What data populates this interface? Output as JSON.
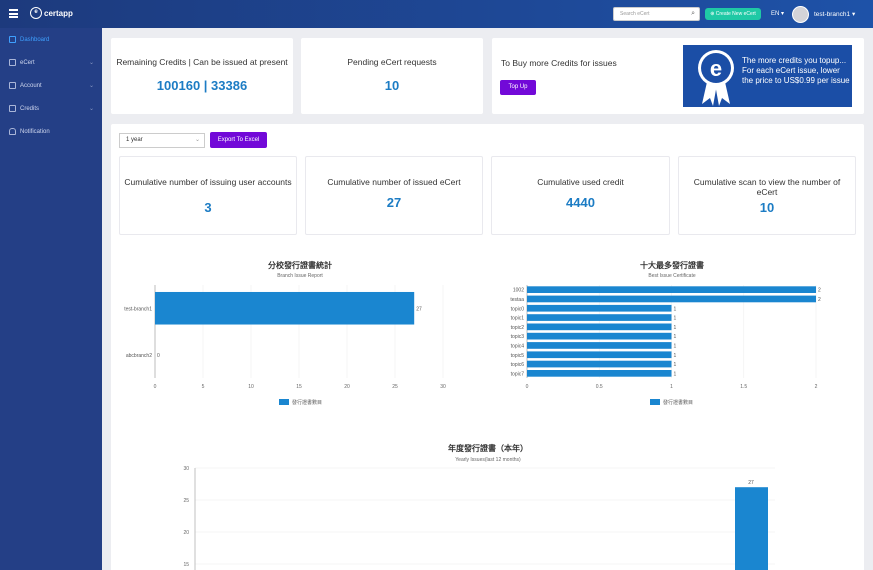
{
  "app": {
    "logo_text": "certapp",
    "search_placeholder": "Search eCert",
    "create_label": "Create New eCert",
    "lang": "EN",
    "user": "test-branch1"
  },
  "sidebar": {
    "items": [
      {
        "label": "Dashboard",
        "active": true
      },
      {
        "label": "eCert",
        "chev": true
      },
      {
        "label": "Account",
        "chev": true
      },
      {
        "label": "Credits",
        "chev": true
      },
      {
        "label": "Notification"
      }
    ]
  },
  "summary": {
    "remaining_title": "Remaining Credits | Can be issued at present",
    "remaining_value": "100160 | 33386",
    "pending_title": "Pending eCert requests",
    "pending_value": "10",
    "buy_title": "To Buy more Credits for issues",
    "topup_label": "Top Up",
    "banner_text": "The more credits you topup... For each eCert issue, lower the price to US$0.99 per issue"
  },
  "filter": {
    "period": "1 year",
    "export_label": "Export To Excel"
  },
  "stats": [
    {
      "title": "Cumulative number of issuing user accounts",
      "value": "3"
    },
    {
      "title": "Cumulative number of issued eCert",
      "value": "27"
    },
    {
      "title": "Cumulative used credit",
      "value": "4440"
    },
    {
      "title": "Cumulative scan to view the number of eCert",
      "value": "10"
    }
  ],
  "chart_data": [
    {
      "type": "bar",
      "orientation": "horizontal",
      "title": "分校發行證書統計",
      "subtitle": "Branch Issue Report",
      "categories": [
        "test-branch1",
        "abcbranch2"
      ],
      "series": [
        {
          "name": "發行證書數目",
          "values": [
            27,
            0
          ]
        }
      ],
      "xlim": [
        0,
        30
      ],
      "xticks": [
        "0",
        "5",
        "10",
        "15",
        "20",
        "25",
        "30"
      ],
      "color": "#1a86d0"
    },
    {
      "type": "bar",
      "orientation": "horizontal",
      "title": "十大最多發行證書",
      "subtitle": "Best Issue Certificate",
      "categories": [
        "1002",
        "testaa",
        "topic0",
        "topic1",
        "topic2",
        "topic3",
        "topic4",
        "topic5",
        "topic6",
        "topic7"
      ],
      "series": [
        {
          "name": "發行證書數目",
          "values": [
            2,
            2,
            1,
            1,
            1,
            1,
            1,
            1,
            1,
            1
          ]
        }
      ],
      "xlim": [
        0,
        2
      ],
      "xticks": [
        "0",
        "0.5",
        "1",
        "1.5",
        "2"
      ],
      "color": "#1a86d0"
    },
    {
      "type": "bar",
      "title": "年度發行證書（本年）",
      "subtitle": "Yearly Issues(last 12 months)",
      "ylim": [
        15,
        30
      ],
      "yticks": [
        "30",
        "25",
        "20",
        "15"
      ],
      "visible_bar_value": 27,
      "color": "#1a86d0"
    }
  ]
}
